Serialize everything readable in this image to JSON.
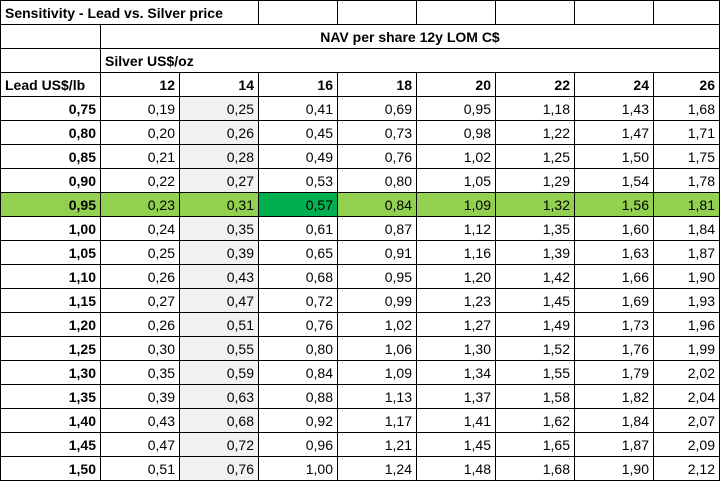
{
  "title": "Sensitivity - Lead vs. Silver price",
  "nav_header": "NAV per share 12y LOM C$",
  "silver_label": "Silver US$/oz",
  "lead_label": "Lead US$/lb",
  "silver_prices": [
    "12",
    "14",
    "16",
    "18",
    "20",
    "22",
    "24",
    "26"
  ],
  "highlight_row_lead": "0,95",
  "highlight_cell_silver": "16",
  "rows": [
    {
      "lead": "0,75",
      "values": [
        "0,19",
        "0,25",
        "0,41",
        "0,69",
        "0,95",
        "1,18",
        "1,43",
        "1,68"
      ]
    },
    {
      "lead": "0,80",
      "values": [
        "0,20",
        "0,26",
        "0,45",
        "0,73",
        "0,98",
        "1,22",
        "1,47",
        "1,71"
      ]
    },
    {
      "lead": "0,85",
      "values": [
        "0,21",
        "0,28",
        "0,49",
        "0,76",
        "1,02",
        "1,25",
        "1,50",
        "1,75"
      ]
    },
    {
      "lead": "0,90",
      "values": [
        "0,22",
        "0,27",
        "0,53",
        "0,80",
        "1,05",
        "1,29",
        "1,54",
        "1,78"
      ]
    },
    {
      "lead": "0,95",
      "values": [
        "0,23",
        "0,31",
        "0,57",
        "0,84",
        "1,09",
        "1,32",
        "1,56",
        "1,81"
      ]
    },
    {
      "lead": "1,00",
      "values": [
        "0,24",
        "0,35",
        "0,61",
        "0,87",
        "1,12",
        "1,35",
        "1,60",
        "1,84"
      ]
    },
    {
      "lead": "1,05",
      "values": [
        "0,25",
        "0,39",
        "0,65",
        "0,91",
        "1,16",
        "1,39",
        "1,63",
        "1,87"
      ]
    },
    {
      "lead": "1,10",
      "values": [
        "0,26",
        "0,43",
        "0,68",
        "0,95",
        "1,20",
        "1,42",
        "1,66",
        "1,90"
      ]
    },
    {
      "lead": "1,15",
      "values": [
        "0,27",
        "0,47",
        "0,72",
        "0,99",
        "1,23",
        "1,45",
        "1,69",
        "1,93"
      ]
    },
    {
      "lead": "1,20",
      "values": [
        "0,26",
        "0,51",
        "0,76",
        "1,02",
        "1,27",
        "1,49",
        "1,73",
        "1,96"
      ]
    },
    {
      "lead": "1,25",
      "values": [
        "0,30",
        "0,55",
        "0,80",
        "1,06",
        "1,30",
        "1,52",
        "1,76",
        "1,99"
      ]
    },
    {
      "lead": "1,30",
      "values": [
        "0,35",
        "0,59",
        "0,84",
        "1,09",
        "1,34",
        "1,55",
        "1,79",
        "2,02"
      ]
    },
    {
      "lead": "1,35",
      "values": [
        "0,39",
        "0,63",
        "0,88",
        "1,13",
        "1,37",
        "1,58",
        "1,82",
        "2,04"
      ]
    },
    {
      "lead": "1,40",
      "values": [
        "0,43",
        "0,68",
        "0,92",
        "1,17",
        "1,41",
        "1,62",
        "1,84",
        "2,07"
      ]
    },
    {
      "lead": "1,45",
      "values": [
        "0,47",
        "0,72",
        "0,96",
        "1,21",
        "1,45",
        "1,65",
        "1,87",
        "2,09"
      ]
    },
    {
      "lead": "1,50",
      "values": [
        "0,51",
        "0,76",
        "1,00",
        "1,24",
        "1,48",
        "1,68",
        "1,90",
        "2,12"
      ]
    }
  ],
  "colors": {
    "highlight_row": "#92d050",
    "highlight_cell": "#00b050",
    "shaded_column": "#f2f2f2"
  }
}
